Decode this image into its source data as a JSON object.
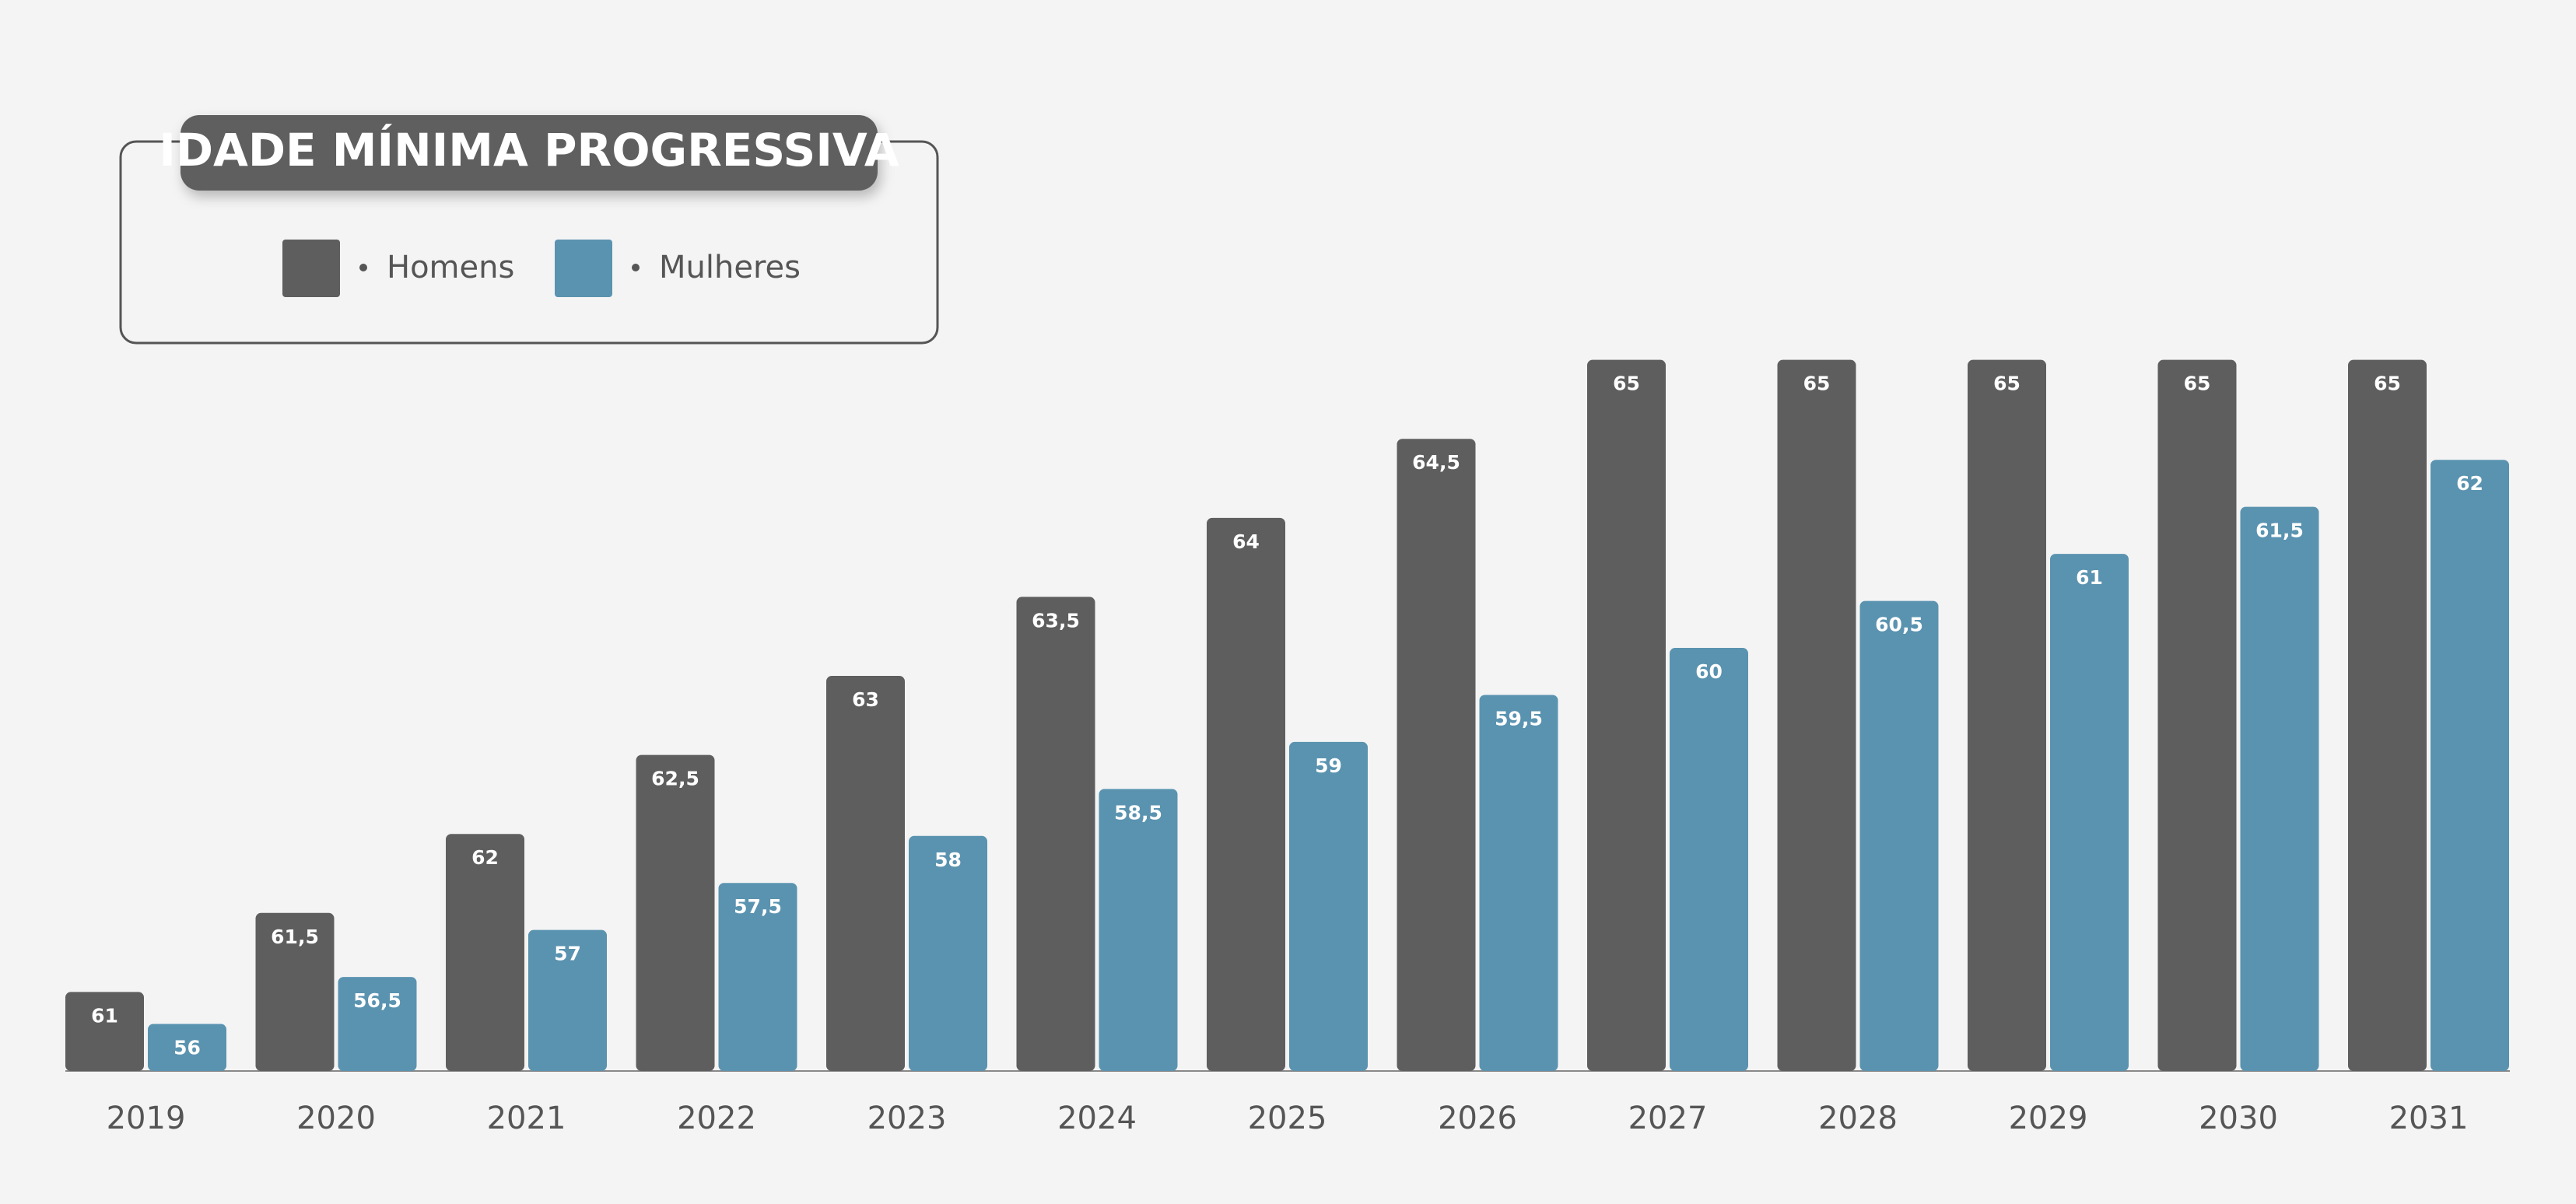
{
  "chart_data": {
    "type": "bar",
    "title": "IDADE MÍNIMA PROGRESSIVA",
    "categories": [
      "2019",
      "2020",
      "2021",
      "2022",
      "2023",
      "2024",
      "2025",
      "2026",
      "2027",
      "2028",
      "2029",
      "2030",
      "2031"
    ],
    "series": [
      {
        "name": "Homens",
        "color": "#5e5e5e",
        "values": [
          61,
          61.5,
          62,
          62.5,
          63,
          63.5,
          64,
          64.5,
          65,
          65,
          65,
          65,
          65
        ],
        "value_labels": [
          "61",
          "61,5",
          "62",
          "62,5",
          "63",
          "63,5",
          "64",
          "64,5",
          "65",
          "65",
          "65",
          "65",
          "65"
        ]
      },
      {
        "name": "Mulheres",
        "color": "#5a93b0",
        "axis": "y2",
        "values": [
          56,
          56.5,
          57,
          57.5,
          58,
          58.5,
          59,
          59.5,
          60,
          60.5,
          61,
          61.5,
          62
        ],
        "value_labels": [
          "56",
          "56,5",
          "57",
          "57,5",
          "58",
          "58,5",
          "59",
          "59,5",
          "60",
          "60,5",
          "61",
          "61,5",
          "62"
        ]
      }
    ],
    "ylim": [
      60.5,
      65.2
    ],
    "y2lim": [
      55.5,
      63.4
    ]
  }
}
